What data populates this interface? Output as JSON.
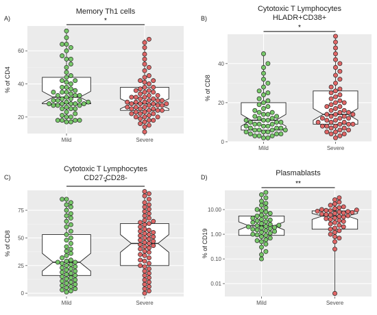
{
  "chart_data": [
    {
      "type": "boxplot",
      "panel_label": "A)",
      "title": [
        "Memory Th1 cells"
      ],
      "ylabel": "% of CD4",
      "categories": [
        "Mild",
        "Severe"
      ],
      "significance": "*",
      "scale": "linear",
      "ylim": [
        10,
        75
      ],
      "yticks": [
        20,
        40,
        60
      ],
      "ytick_labels": [
        "20",
        "40",
        "60"
      ],
      "boxes": [
        {
          "name": "Mild",
          "q1": 28,
          "median": 32,
          "q3": 44,
          "notch": [
            28.5,
            35.5
          ],
          "min": 17,
          "max": 72
        },
        {
          "name": "Severe",
          "q1": 24,
          "median": 28,
          "q3": 38,
          "notch": [
            25,
            31
          ],
          "min": 11,
          "max": 67
        }
      ],
      "points": [
        [
          17,
          17,
          18,
          18,
          18,
          18,
          20,
          20,
          21,
          22,
          23,
          25,
          25,
          25,
          26,
          27,
          27,
          27,
          28,
          28,
          28,
          28,
          28,
          29,
          29,
          30,
          30,
          30,
          31,
          31,
          32,
          33,
          33,
          33,
          34,
          35,
          35,
          35,
          36,
          37,
          38,
          38,
          40,
          41,
          42,
          42,
          44,
          45,
          47,
          50,
          52,
          55,
          55,
          57,
          60,
          62,
          64,
          64,
          68,
          72
        ],
        [
          11,
          14,
          15,
          16,
          17,
          18,
          18,
          19,
          20,
          20,
          20,
          21,
          22,
          22,
          22,
          23,
          23,
          24,
          24,
          24,
          25,
          25,
          25,
          26,
          26,
          26,
          27,
          27,
          27,
          28,
          28,
          28,
          28,
          29,
          29,
          29,
          30,
          30,
          30,
          31,
          31,
          32,
          32,
          32,
          33,
          33,
          34,
          35,
          35,
          36,
          36,
          37,
          38,
          38,
          40,
          41,
          42,
          42,
          44,
          45,
          48,
          50,
          52,
          55,
          58,
          62,
          65,
          67
        ]
      ]
    },
    {
      "type": "boxplot",
      "panel_label": "B)",
      "title": [
        "Cytotoxic T Lymphocytes",
        "HLADR+CD38+"
      ],
      "ylabel": "% of CD8",
      "categories": [
        "Mild",
        "Severe"
      ],
      "significance": "*",
      "scale": "linear",
      "ylim": [
        0,
        55
      ],
      "yticks": [
        0,
        20,
        40
      ],
      "ytick_labels": [
        "0",
        "20",
        "40"
      ],
      "boxes": [
        {
          "name": "Mild",
          "q1": 6,
          "median": 11,
          "q3": 20,
          "notch": [
            8,
            14
          ],
          "min": 2,
          "max": 45
        },
        {
          "name": "Severe",
          "q1": 9,
          "median": 14,
          "q3": 26,
          "notch": [
            11,
            17
          ],
          "min": 2,
          "max": 54
        }
      ],
      "points": [
        [
          2,
          2,
          3,
          3,
          3,
          4,
          4,
          4,
          5,
          5,
          5,
          6,
          6,
          6,
          6,
          7,
          7,
          7,
          8,
          8,
          8,
          9,
          9,
          9,
          10,
          10,
          10,
          11,
          11,
          11,
          12,
          12,
          13,
          13,
          14,
          14,
          15,
          15,
          16,
          17,
          18,
          19,
          20,
          21,
          22,
          24,
          25,
          26,
          28,
          30,
          32,
          35,
          38,
          40,
          45
        ],
        [
          2,
          3,
          4,
          4,
          5,
          5,
          6,
          6,
          7,
          7,
          8,
          8,
          8,
          9,
          9,
          9,
          10,
          10,
          10,
          11,
          11,
          12,
          12,
          12,
          13,
          13,
          14,
          14,
          14,
          15,
          15,
          16,
          16,
          17,
          18,
          18,
          19,
          20,
          20,
          21,
          22,
          23,
          24,
          25,
          26,
          27,
          28,
          30,
          32,
          34,
          36,
          38,
          40,
          42,
          45,
          48,
          51,
          54
        ]
      ]
    },
    {
      "type": "boxplot",
      "panel_label": "C)",
      "title": [
        "Cytotoxic T Lymphocytes",
        "CD27-CD28-"
      ],
      "ylabel": "% of CD8",
      "categories": [
        "Mild",
        "Severe"
      ],
      "significance": "*",
      "scale": "linear",
      "ylim": [
        -3,
        93
      ],
      "yticks": [
        0,
        25,
        50,
        75
      ],
      "ytick_labels": [
        "0",
        "25",
        "50",
        "75"
      ],
      "boxes": [
        {
          "name": "Mild",
          "q1": 16,
          "median": 28,
          "q3": 53,
          "notch": [
            20,
            36
          ],
          "min": 1,
          "max": 85
        },
        {
          "name": "Severe",
          "q1": 25,
          "median": 45,
          "q3": 63,
          "notch": [
            37,
            53
          ],
          "min": 0,
          "max": 92
        }
      ],
      "points": [
        [
          1,
          2,
          3,
          4,
          5,
          6,
          7,
          8,
          9,
          10,
          11,
          12,
          13,
          14,
          15,
          16,
          17,
          18,
          19,
          20,
          21,
          22,
          23,
          24,
          25,
          26,
          27,
          28,
          28,
          29,
          30,
          32,
          34,
          36,
          38,
          40,
          42,
          45,
          48,
          50,
          53,
          56,
          60,
          62,
          65,
          68,
          70,
          72,
          75,
          78,
          80,
          82,
          85,
          85
        ],
        [
          0,
          2,
          4,
          6,
          8,
          10,
          12,
          14,
          16,
          18,
          20,
          22,
          24,
          25,
          27,
          29,
          30,
          32,
          34,
          35,
          37,
          38,
          40,
          41,
          42,
          43,
          44,
          45,
          46,
          47,
          48,
          49,
          50,
          51,
          52,
          53,
          54,
          55,
          56,
          57,
          58,
          60,
          62,
          63,
          64,
          65,
          66,
          68,
          70,
          72,
          74,
          76,
          78,
          80,
          82,
          85,
          88,
          90,
          92
        ]
      ]
    },
    {
      "type": "boxplot",
      "panel_label": "D)",
      "title": [
        "Plasmablasts"
      ],
      "ylabel": "% of CD19",
      "categories": [
        "Mild",
        "Severe"
      ],
      "significance": "**",
      "scale": "log10",
      "ylim": [
        0.003,
        60
      ],
      "yticks": [
        0.01,
        0.1,
        1,
        10
      ],
      "ytick_labels": [
        "0.01",
        "0.10",
        "1.00",
        "10.00"
      ],
      "boxes": [
        {
          "name": "Mild",
          "q1": 0.9,
          "median": 2.2,
          "q3": 5.5,
          "notch": [
            1.5,
            3.2
          ],
          "min": 0.1,
          "max": 50
        },
        {
          "name": "Severe",
          "q1": 1.6,
          "median": 5.5,
          "q3": 8.8,
          "notch": [
            4.0,
            7.0
          ],
          "min": 0.004,
          "max": 30
        }
      ],
      "points": [
        [
          0.1,
          0.15,
          0.2,
          0.3,
          0.4,
          0.5,
          0.55,
          0.6,
          0.7,
          0.8,
          0.9,
          0.95,
          1.0,
          1.1,
          1.2,
          1.3,
          1.4,
          1.5,
          1.6,
          1.7,
          1.8,
          1.9,
          2.0,
          2.1,
          2.2,
          2.3,
          2.5,
          2.7,
          3.0,
          3.2,
          3.5,
          3.8,
          4.0,
          4.5,
          5.0,
          5.5,
          6.0,
          7.0,
          8.0,
          9.0,
          10,
          12,
          15,
          18,
          22,
          30,
          40,
          50
        ],
        [
          0.004,
          0.25,
          0.5,
          0.7,
          0.8,
          1.0,
          1.2,
          1.4,
          1.6,
          1.8,
          2.0,
          2.3,
          2.6,
          3.0,
          3.3,
          3.6,
          4.0,
          4.3,
          4.6,
          5.0,
          5.3,
          5.6,
          6.0,
          6.3,
          6.6,
          7.0,
          7.3,
          7.6,
          8.0,
          8.3,
          8.6,
          9.0,
          9.3,
          9.6,
          10,
          11,
          12,
          13,
          15,
          17,
          20,
          25,
          30
        ]
      ]
    }
  ],
  "style": {
    "panel_bg": "#ebebeb",
    "grid_major": "#ffffff",
    "grid_minor": "#f5f5f5",
    "mild_fill": "#78c86a",
    "severe_fill": "#e06666",
    "point_stroke": "#222222",
    "box_fill": "#ffffff",
    "box_stroke": "#222222",
    "text_color": "#222222",
    "tick_color": "#4d4d4d"
  }
}
